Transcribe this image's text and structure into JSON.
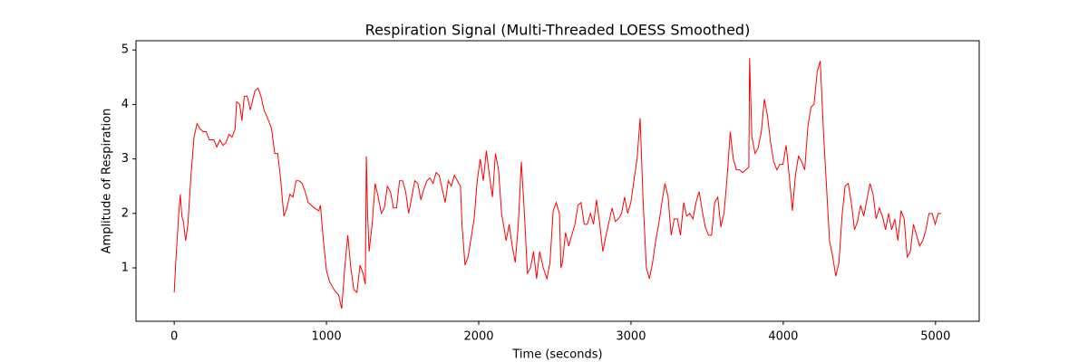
{
  "chart_data": {
    "type": "line",
    "title": "Respiration Signal (Multi-Threaded LOESS Smoothed)",
    "x_label": "Time (seconds)",
    "y_label": "Amplitude of Respiration",
    "xlim": [
      -251,
      5287
    ],
    "ylim": [
      0.02,
      5.17
    ],
    "xticks": [
      0,
      1000,
      2000,
      3000,
      4000,
      5000
    ],
    "yticks": [
      1,
      2,
      3,
      4,
      5
    ],
    "grid": false,
    "series": [
      {
        "name": "Respiration",
        "color": "#ff0000",
        "x": [
          0,
          10,
          30,
          40,
          50,
          60,
          75,
          90,
          110,
          130,
          150,
          170,
          190,
          210,
          230,
          260,
          280,
          300,
          320,
          340,
          360,
          380,
          400,
          410,
          430,
          445,
          460,
          480,
          500,
          530,
          550,
          570,
          590,
          620,
          640,
          660,
          680,
          700,
          720,
          740,
          760,
          780,
          800,
          820,
          840,
          860,
          880,
          920,
          950,
          960,
          980,
          1000,
          1020,
          1050,
          1080,
          1100,
          1120,
          1140,
          1160,
          1180,
          1200,
          1220,
          1240,
          1255,
          1262,
          1270,
          1280,
          1300,
          1320,
          1340,
          1360,
          1380,
          1400,
          1420,
          1440,
          1460,
          1480,
          1500,
          1520,
          1540,
          1560,
          1580,
          1600,
          1620,
          1640,
          1660,
          1680,
          1700,
          1720,
          1740,
          1760,
          1780,
          1800,
          1820,
          1840,
          1860,
          1880,
          1890,
          1910,
          1930,
          1970,
          1990,
          2010,
          2030,
          2050,
          2070,
          2090,
          2110,
          2130,
          2150,
          2180,
          2200,
          2220,
          2240,
          2260,
          2280,
          2300,
          2320,
          2340,
          2360,
          2380,
          2400,
          2424,
          2448,
          2468,
          2489,
          2509,
          2530,
          2540,
          2550,
          2570,
          2591,
          2611,
          2632,
          2652,
          2672,
          2693,
          2713,
          2734,
          2754,
          2774,
          2795,
          2815,
          2836,
          2856,
          2876,
          2897,
          2917,
          2938,
          2958,
          2978,
          2999,
          3019,
          3040,
          3060,
          3080,
          3101,
          3121,
          3142,
          3162,
          3182,
          3203,
          3223,
          3244,
          3264,
          3284,
          3305,
          3325,
          3346,
          3366,
          3386,
          3407,
          3427,
          3448,
          3468,
          3488,
          3509,
          3529,
          3550,
          3570,
          3590,
          3611,
          3631,
          3652,
          3672,
          3692,
          3713,
          3733,
          3754,
          3774,
          3779,
          3794,
          3815,
          3835,
          3856,
          3876,
          3896,
          3917,
          3937,
          3958,
          3978,
          3998,
          4019,
          4039,
          4060,
          4080,
          4100,
          4121,
          4141,
          4162,
          4182,
          4202,
          4223,
          4243,
          4264,
          4284,
          4304,
          4325,
          4345,
          4366,
          4386,
          4406,
          4427,
          4447,
          4468,
          4488,
          4508,
          4529,
          4549,
          4570,
          4590,
          4610,
          4631,
          4651,
          4672,
          4692,
          4712,
          4733,
          4753,
          4774,
          4794,
          4814,
          4835,
          4855,
          4876,
          4896,
          4916,
          4937,
          4957,
          4978,
          4998,
          5018,
          5038
        ],
        "values": [
          0.55,
          1.1,
          2.0,
          2.35,
          1.95,
          1.85,
          1.5,
          1.8,
          2.7,
          3.4,
          3.65,
          3.55,
          3.5,
          3.5,
          3.35,
          3.35,
          3.22,
          3.35,
          3.25,
          3.3,
          3.45,
          3.4,
          3.55,
          4.05,
          4.0,
          3.7,
          4.15,
          4.15,
          3.9,
          4.25,
          4.3,
          4.15,
          3.9,
          3.7,
          3.55,
          3.1,
          3.1,
          2.6,
          1.95,
          2.1,
          2.35,
          2.3,
          2.6,
          2.6,
          2.55,
          2.4,
          2.2,
          2.1,
          2.05,
          2.15,
          1.5,
          0.95,
          0.75,
          0.6,
          0.5,
          0.25,
          1.0,
          1.6,
          1.0,
          0.6,
          0.55,
          1.05,
          0.9,
          0.7,
          3.05,
          2.0,
          1.3,
          1.8,
          2.55,
          2.3,
          2.0,
          2.1,
          2.5,
          2.4,
          2.1,
          2.1,
          2.6,
          2.6,
          2.4,
          2.0,
          2.3,
          2.6,
          2.55,
          2.25,
          2.45,
          2.6,
          2.65,
          2.55,
          2.75,
          2.7,
          2.45,
          2.2,
          2.6,
          2.5,
          2.7,
          2.6,
          2.5,
          1.8,
          1.05,
          1.2,
          1.9,
          2.6,
          3.0,
          2.6,
          3.15,
          2.7,
          2.3,
          3.1,
          2.8,
          2.0,
          1.5,
          1.8,
          1.4,
          1.1,
          1.8,
          2.95,
          2.0,
          0.9,
          1.0,
          1.3,
          0.8,
          1.3,
          1.0,
          0.8,
          1.1,
          2.05,
          2.2,
          2.0,
          1.0,
          1.1,
          1.65,
          1.4,
          1.6,
          1.8,
          2.15,
          2.2,
          1.8,
          1.8,
          2.0,
          1.8,
          2.25,
          1.8,
          1.3,
          1.6,
          1.85,
          2.1,
          1.85,
          1.9,
          2.0,
          2.3,
          2.0,
          2.2,
          2.6,
          3.0,
          3.75,
          2.2,
          1.0,
          0.8,
          1.1,
          1.5,
          1.8,
          2.2,
          2.55,
          2.3,
          1.6,
          1.9,
          1.9,
          1.6,
          2.2,
          1.95,
          2.0,
          1.9,
          2.2,
          2.4,
          2.05,
          1.75,
          1.6,
          1.6,
          2.2,
          2.3,
          1.75,
          2.0,
          2.65,
          3.5,
          3.0,
          2.8,
          2.8,
          2.75,
          2.8,
          2.85,
          4.85,
          3.4,
          3.1,
          3.2,
          3.5,
          4.1,
          3.8,
          3.3,
          2.95,
          2.8,
          2.9,
          2.9,
          3.25,
          2.7,
          2.05,
          2.7,
          3.05,
          2.95,
          2.8,
          3.6,
          3.95,
          4.0,
          4.6,
          4.8,
          3.5,
          2.5,
          1.5,
          1.2,
          0.85,
          1.1,
          1.95,
          2.5,
          2.55,
          2.2,
          1.7,
          1.85,
          2.15,
          1.95,
          2.25,
          2.55,
          2.35,
          1.9,
          2.1,
          1.95,
          1.7,
          2.0,
          1.7,
          1.9,
          1.5,
          2.05,
          1.9,
          1.2,
          1.3,
          1.8,
          1.6,
          1.4,
          1.5,
          1.7,
          2.0,
          2.0,
          1.8,
          2.0,
          2.0
        ]
      }
    ]
  }
}
